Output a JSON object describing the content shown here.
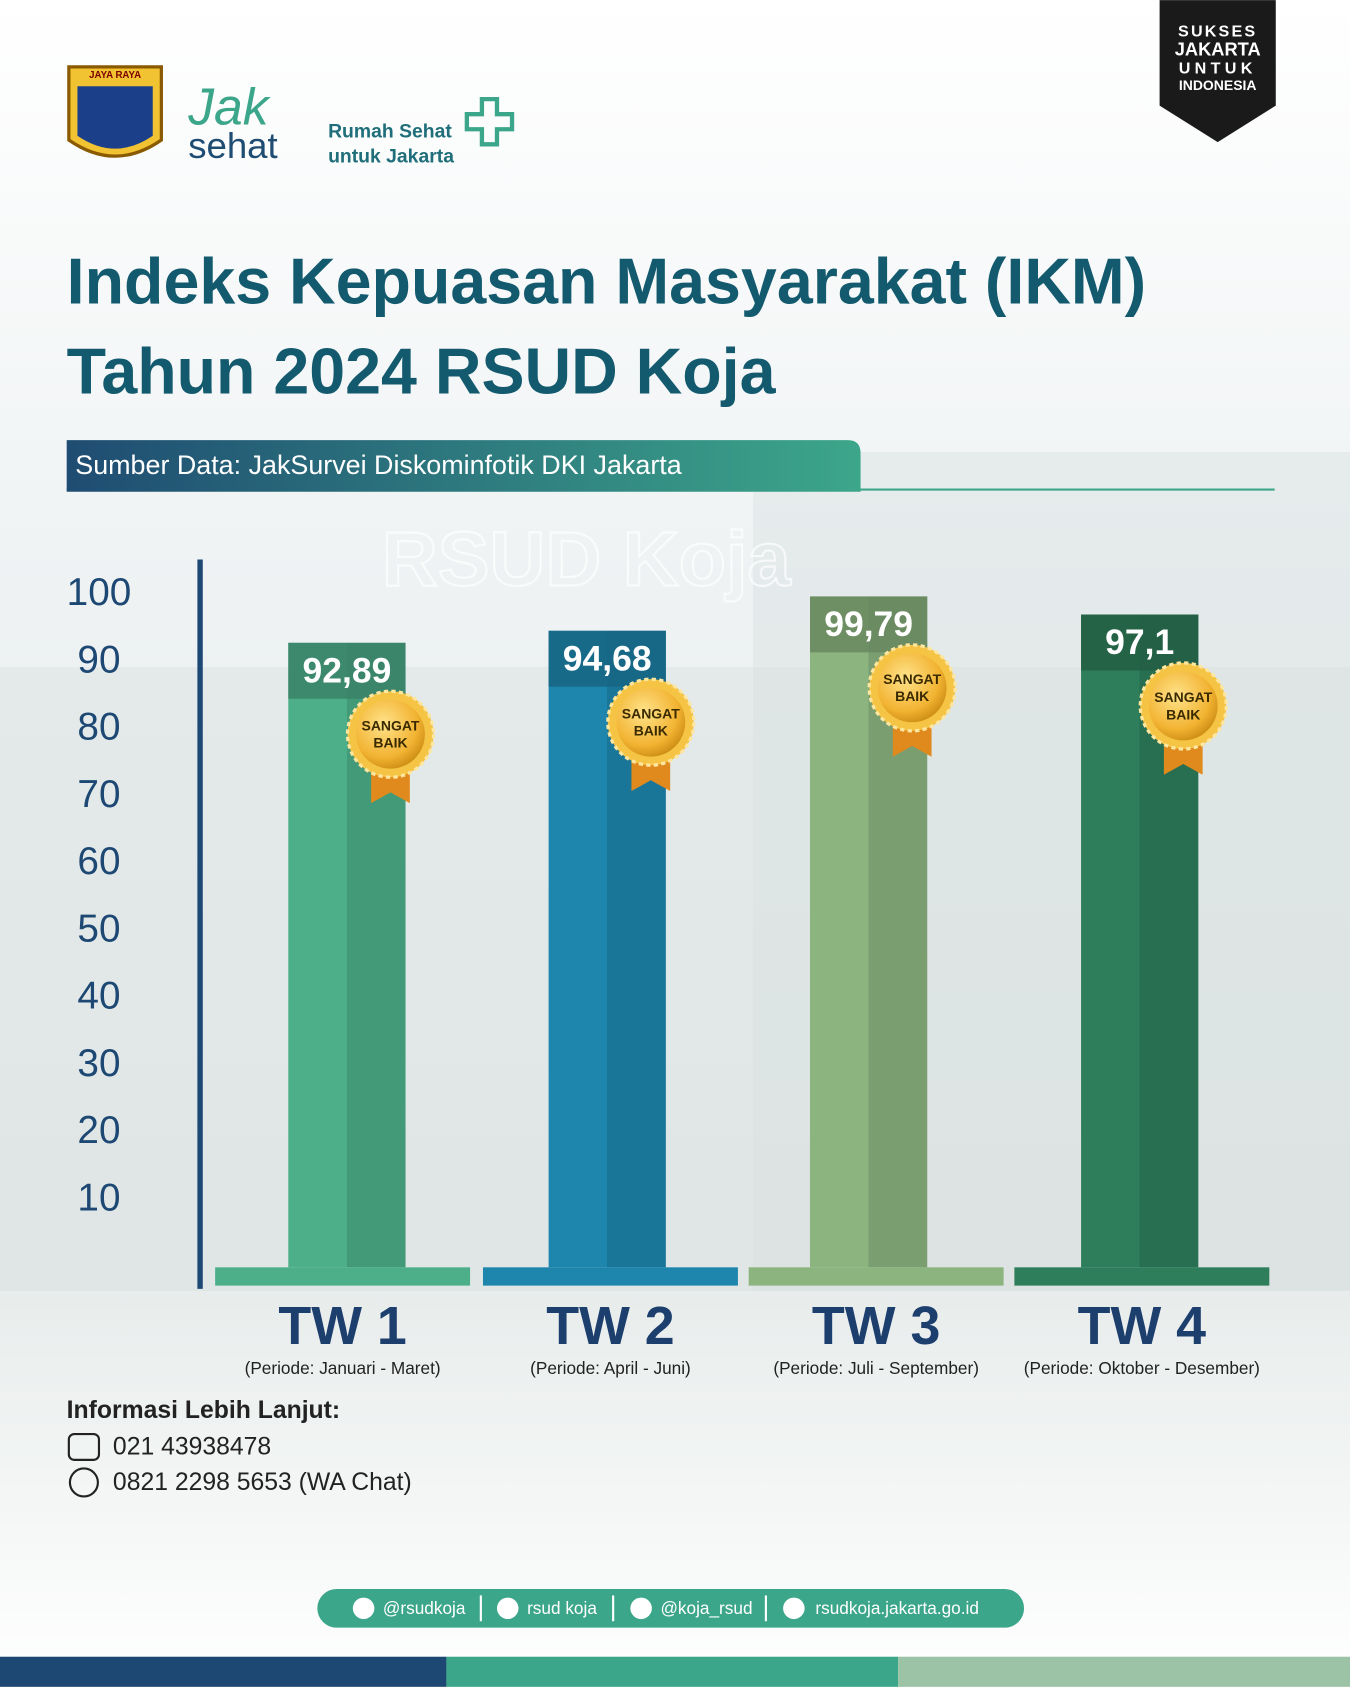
{
  "header": {
    "emblem": "JAYA RAYA",
    "brand_top": "Jak",
    "brand_bottom": "sehat",
    "tagline": [
      "Rumah Sehat",
      "untuk Jakarta"
    ],
    "badge": [
      "SUKSES",
      "JAKARTA",
      "UNTUK",
      "INDONESIA"
    ],
    "watermark": "RSUD Koja"
  },
  "chart_data": {
    "type": "bar",
    "title": [
      "Indeks Kepuasan Masyarakat (IKM)",
      "Tahun 2024 RSUD Koja"
    ],
    "subtitle": "Sumber Data: JakSurvei Diskominfotik DKI Jakarta",
    "categories": [
      "TW 1",
      "TW 2",
      "TW 3",
      "TW 4"
    ],
    "category_notes": [
      "(Periode: Januari - Maret)",
      "(Periode: April - Juni)",
      "(Periode: Juli - September)",
      "(Periode: Oktober - Desember)"
    ],
    "values": [
      92.89,
      94.68,
      99.79,
      97.1
    ],
    "value_labels": [
      "92,89",
      "94,68",
      "99,79",
      "97,1"
    ],
    "colors": [
      "#4caf8a",
      "#1e86ad",
      "#8bb47f",
      "#2e7d5b"
    ],
    "badges": [
      [
        "SANGAT",
        "BAIK"
      ],
      [
        "SANGAT",
        "BAIK"
      ],
      [
        "SANGAT",
        "BAIK"
      ],
      [
        "SANGAT",
        "BAIK"
      ]
    ],
    "ylim": [
      0,
      100
    ],
    "yticks": [
      10,
      20,
      30,
      40,
      50,
      60,
      70,
      80,
      90,
      100
    ],
    "grid": false
  },
  "contact": {
    "heading": "Informasi Lebih Lanjut:",
    "phones": [
      "021 43938478",
      "0821 2298 5653 (WA Chat)"
    ]
  },
  "footer": {
    "socials": [
      "@rsudkoja",
      "rsud koja",
      "@koja_rsud",
      "rsudkoja.jakarta.go.id"
    ]
  }
}
